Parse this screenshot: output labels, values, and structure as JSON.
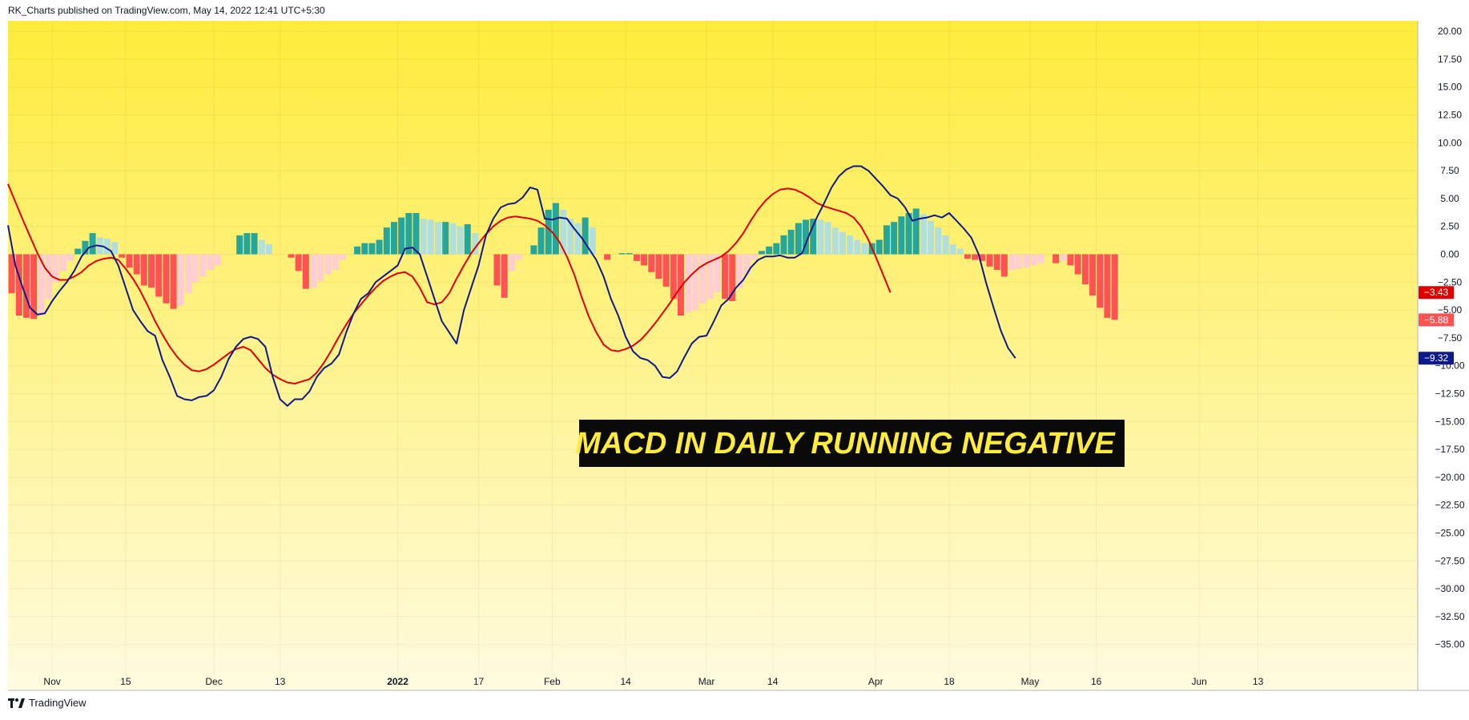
{
  "header": {
    "text": "RK_Charts published on TradingView.com, May 14, 2022 12:41 UTC+5:30"
  },
  "footer": {
    "brand": "TradingView",
    "logo_icon": "tradingview-logo-icon"
  },
  "colors": {
    "background_top": "#ffeb3b",
    "background_bottom": "#fffbe0",
    "macd_line": "#0d1a8c",
    "signal_line": "#e00000",
    "hist_pos_strong": "#26a69a",
    "hist_pos_weak": "#b2dfdb",
    "hist_neg_strong": "#ff5252",
    "hist_neg_weak": "#ffcdd2"
  },
  "chart_data": {
    "type": "line",
    "indicator": "MACD",
    "ylim": [
      -37.5,
      20
    ],
    "y_ticks": [
      20,
      17.5,
      15,
      12.5,
      10,
      7.5,
      5,
      2.5,
      0,
      -2.5,
      -5,
      -7.5,
      -10,
      -12.5,
      -15,
      -17.5,
      -20,
      -22.5,
      -25,
      -27.5,
      -30,
      -32.5,
      -35
    ],
    "y_tick_labels": [
      "20.00",
      "17.50",
      "15.00",
      "12.50",
      "10.00",
      "7.50",
      "5.00",
      "2.50",
      "0.00",
      "−2.50",
      "−5.00",
      "−7.50",
      "−10.00",
      "−12.50",
      "−15.00",
      "−17.50",
      "−20.00",
      "−22.50",
      "−25.00",
      "−27.50",
      "−30.00",
      "−32.50",
      "−35.00"
    ],
    "x_ticks": [
      {
        "label": "Nov",
        "index": 6,
        "bold": false
      },
      {
        "label": "15",
        "index": 16,
        "bold": false
      },
      {
        "label": "Dec",
        "index": 28,
        "bold": false
      },
      {
        "label": "13",
        "index": 37,
        "bold": false
      },
      {
        "label": "2022",
        "index": 53,
        "bold": true
      },
      {
        "label": "17",
        "index": 64,
        "bold": false
      },
      {
        "label": "Feb",
        "index": 74,
        "bold": false
      },
      {
        "label": "14",
        "index": 84,
        "bold": false
      },
      {
        "label": "Mar",
        "index": 95,
        "bold": false
      },
      {
        "label": "14",
        "index": 104,
        "bold": false
      },
      {
        "label": "Apr",
        "index": 118,
        "bold": false
      },
      {
        "label": "18",
        "index": 128,
        "bold": false
      },
      {
        "label": "May",
        "index": 139,
        "bold": false
      },
      {
        "label": "16",
        "index": 148,
        "bold": false
      },
      {
        "label": "Jun",
        "index": 162,
        "bold": false
      },
      {
        "label": "13",
        "index": 170,
        "bold": false
      }
    ],
    "x_max_index": 176,
    "annotation": "MACD IN DAILY RUNNING NEGATIVE",
    "last_values": [
      {
        "label": "−3.43",
        "value": -3.43,
        "series": "signal",
        "color": "#e00000"
      },
      {
        "label": "−5.88",
        "value": -5.88,
        "series": "histogram",
        "color": "#ff5252"
      },
      {
        "label": "−9.32",
        "value": -9.32,
        "series": "macd",
        "color": "#0d1a8c"
      }
    ],
    "series": [
      {
        "key": "macd",
        "values": [
          2.6,
          -1,
          -3,
          -4.8,
          -5.4,
          -5.3,
          -4.2,
          -3.3,
          -2.5,
          -1.5,
          -0.2,
          0.6,
          0.8,
          0.7,
          0.3,
          -1,
          -3,
          -5,
          -6,
          -6.9,
          -7.3,
          -9.5,
          -11,
          -12.7,
          -13,
          -13.1,
          -12.8,
          -12.7,
          -12.2,
          -11,
          -9.4,
          -8.3,
          -7.6,
          -7.4,
          -7.6,
          -8.3,
          -11,
          -13,
          -13.6,
          -13,
          -13,
          -12.3,
          -11,
          -10.2,
          -9.8,
          -9,
          -7,
          -5.3,
          -4,
          -3.5,
          -2.5,
          -2,
          -1.5,
          -1,
          0.5,
          0.6,
          0,
          -2,
          -4,
          -6,
          -7,
          -8,
          -5,
          -3,
          -1,
          1.7,
          3.2,
          4.2,
          4.5,
          4.6,
          5.1,
          6,
          5.8,
          3.2,
          3.1,
          3.3,
          3.2,
          2.3,
          1.5,
          0.5,
          -0.5,
          -2,
          -4,
          -5.5,
          -7.4,
          -8.7,
          -9.3,
          -9.5,
          -10,
          -11,
          -11.1,
          -10.5,
          -9.2,
          -8,
          -7.4,
          -7.3,
          -6,
          -4.6,
          -4,
          -3,
          -2.3,
          -1.2,
          -0.5,
          -0.2,
          -0.2,
          -0.1,
          -0.3,
          -0.3,
          0.1,
          1.8,
          3.3,
          4.6,
          6,
          7,
          7.6,
          7.9,
          7.9,
          7.5,
          6.8,
          6.1,
          5.3,
          5,
          4.2,
          3,
          3.2,
          3.3,
          3.5,
          3.3,
          3.7,
          3,
          2.3,
          1.5,
          0,
          -2.5,
          -4.7,
          -6.8,
          -8.4,
          -9.32
        ]
      },
      {
        "key": "signal",
        "values": [
          6.3,
          4.7,
          3.1,
          1.6,
          0.1,
          -1.2,
          -2,
          -2.3,
          -2.3,
          -2,
          -1.6,
          -1,
          -0.6,
          -0.4,
          -0.3,
          -0.5,
          -1.3,
          -2.2,
          -3.3,
          -4.6,
          -6,
          -7.2,
          -8.3,
          -9.2,
          -9.9,
          -10.4,
          -10.5,
          -10.3,
          -9.9,
          -9.4,
          -8.9,
          -8.5,
          -8.3,
          -8.6,
          -9.4,
          -10.2,
          -10.8,
          -11.2,
          -11.5,
          -11.6,
          -11.4,
          -11.2,
          -10.6,
          -9.7,
          -8.6,
          -7.4,
          -6.3,
          -5.3,
          -4.5,
          -3.7,
          -3,
          -2.4,
          -2,
          -1.7,
          -1.6,
          -2,
          -3,
          -4.3,
          -4.5,
          -4.3,
          -3.5,
          -2.2,
          -1,
          0.1,
          1,
          1.8,
          2.5,
          3,
          3.3,
          3.4,
          3.3,
          3.2,
          3,
          2.6,
          2,
          1.1,
          -0.2,
          -1.8,
          -3.8,
          -5.6,
          -7,
          -8.1,
          -8.6,
          -8.7,
          -8.5,
          -8.2,
          -7.7,
          -7,
          -6.2,
          -5.3,
          -4.4,
          -3.4,
          -2.5,
          -1.8,
          -1.2,
          -0.8,
          -0.5,
          -0.2,
          0.3,
          1,
          1.9,
          3,
          4,
          4.8,
          5.4,
          5.8,
          5.9,
          5.8,
          5.5,
          5.1,
          4.6,
          4.3,
          4.1,
          3.9,
          3.7,
          3.3,
          2.5,
          1.3,
          -0.2,
          -1.8,
          -3.43
        ]
      },
      {
        "key": "histogram",
        "values": [
          -3.5,
          -5.5,
          -5.7,
          -5.8,
          -5.5,
          -4,
          -2.5,
          -1.5,
          -0.6,
          0.5,
          1.2,
          1.9,
          1.5,
          1.4,
          1.1,
          -0.3,
          -1.2,
          -1.8,
          -2.8,
          -3,
          -3.8,
          -4.4,
          -4.9,
          -4.6,
          -3.5,
          -2.5,
          -2,
          -1.4,
          -1,
          0,
          0,
          1.7,
          1.9,
          1.9,
          1.3,
          0.9,
          0,
          0,
          -0.3,
          -1.5,
          -3.1,
          -3,
          -2.4,
          -1.8,
          -1.4,
          -0.5,
          0,
          0.7,
          1,
          1,
          1.3,
          2.4,
          2.9,
          3.3,
          3.7,
          3.7,
          3.2,
          3.1,
          2.9,
          2.9,
          2.8,
          2.5,
          2.7,
          1.9,
          0,
          0,
          -2.8,
          -3.9,
          -1.5,
          -0.5,
          0,
          0.8,
          2.4,
          4,
          4.6,
          4,
          3.2,
          2.8,
          3.3,
          2.4,
          0,
          -0.5,
          0,
          0.1,
          0.1,
          -0.6,
          -1,
          -1.6,
          -2.2,
          -2.9,
          -4,
          -5.5,
          -5.2,
          -5,
          -4.4,
          -4,
          -3.4,
          -4,
          -4.2,
          -3,
          -1.8,
          -0.5,
          0.3,
          0.7,
          1,
          1.7,
          2.2,
          2.8,
          3.1,
          3.2,
          3.1,
          2.9,
          2.4,
          2,
          1.7,
          1.3,
          1,
          1,
          1.3,
          2.6,
          2.9,
          3.4,
          3.7,
          4.1,
          3.6,
          3,
          2.4,
          1.7,
          0.9,
          0.5,
          -0.4,
          -0.5,
          -0.6,
          -1.1,
          -1.4,
          -2,
          -1.4,
          -1.3,
          -1.2,
          -1,
          -0.8,
          0,
          -0.8,
          -0.6,
          -1,
          -1.8,
          -2.7,
          -3.7,
          -4.8,
          -5.7,
          -5.88
        ],
        "histogram_x_start": 0
      }
    ]
  }
}
